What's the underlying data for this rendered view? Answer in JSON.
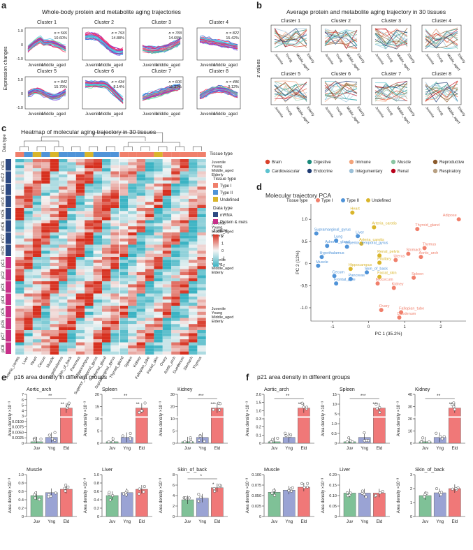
{
  "panel_labels": {
    "a": "a",
    "b": "b",
    "c": "c",
    "d": "d",
    "e": "e",
    "f": "f"
  },
  "titles": {
    "a": "Whole-body protein and metabolite aging trajectories",
    "b": "Average protein and metabolite aging trajectory in 30 tissues",
    "c": "Heatmap of molecular aging trajectory in 30 tissues",
    "d": "Molecular trajectory PCA",
    "e": "p16 area density in different groups",
    "f": "p21 area density in different groups"
  },
  "colors": {
    "typeI": "#f07f6b",
    "typeII": "#4f93d8",
    "undefined": "#d9b52b",
    "mrna": "#2e4a82",
    "protmets": "#c8308a",
    "heat_hi": "#d7301f",
    "heat_mid": "#f4f4f4",
    "heat_lo": "#3bb3c3",
    "juv": "#7fc197",
    "yng": "#9aa3d4",
    "eld": "#f07878"
  },
  "panel_a": {
    "ylabel": "Expression changes",
    "x_labels": [
      "Juvenile",
      "Middle_aged"
    ],
    "clusters": [
      {
        "name": "Cluster 1",
        "n": "n = 565",
        "pct": "10.60%"
      },
      {
        "name": "Cluster 2",
        "n": "n = 793",
        "pct": "14.88%"
      },
      {
        "name": "Cluster 3",
        "n": "n = 783",
        "pct": "14.69%"
      },
      {
        "name": "Cluster 4",
        "n": "n = 822",
        "pct": "15.42%"
      },
      {
        "name": "Cluster 5",
        "n": "n = 842",
        "pct": "15.79%"
      },
      {
        "name": "Cluster 6",
        "n": "n = 434",
        "pct": "8.14%"
      },
      {
        "name": "Cluster 7",
        "n": "n = 606",
        "pct": "11.37%"
      },
      {
        "name": "Cluster 8",
        "n": "n = 486",
        "pct": "9.12%"
      }
    ],
    "yticks": [
      "1.0",
      "0.5",
      "0",
      "-0.5",
      "-1.0"
    ]
  },
  "panel_b": {
    "ylabel": "z values",
    "x_labels": [
      "Juvenile",
      "Young",
      "Middle_aged",
      "Elderly"
    ],
    "clusters": [
      "Cluster 1",
      "Cluster 2",
      "Cluster 3",
      "Cluster 4",
      "Cluster 5",
      "Cluster 6",
      "Cluster 7",
      "Cluster 8"
    ],
    "yticks_left": [
      "0.6",
      "0.4",
      "0.2",
      "0",
      "-0.2",
      "-0.4",
      "-0.6"
    ],
    "legend": [
      {
        "label": "Brain",
        "color": "#d9412b"
      },
      {
        "label": "Digestive",
        "color": "#1a8a7a"
      },
      {
        "label": "Immune",
        "color": "#f3a37a"
      },
      {
        "label": "Muscle",
        "color": "#8bc5a3"
      },
      {
        "label": "Reproductive",
        "color": "#8b5a2b"
      },
      {
        "label": "Cardiovascular",
        "color": "#5cc3d0"
      },
      {
        "label": "Endocrine",
        "color": "#1f3b73"
      },
      {
        "label": "Integumentary",
        "color": "#9bc0d8"
      },
      {
        "label": "Renal",
        "color": "#b8001a"
      },
      {
        "label": "Respiratory",
        "color": "#b8a082"
      }
    ]
  },
  "panel_c": {
    "data_type_label": "Data type",
    "tissue_type_label": "Tissue type",
    "rows": [
      "mC1",
      "mC2",
      "mC3",
      "mC4",
      "mC5",
      "mC6",
      "mC7",
      "mC8",
      "pC1",
      "pC2",
      "pC3",
      "pC4",
      "pC5",
      "pC6",
      "pC7",
      "pC8"
    ],
    "stage_labels": [
      "Juvenile",
      "Young",
      "Middle_aged",
      "Elderly"
    ],
    "columns": [
      "Arteria_carotis",
      "Liver",
      "Heart",
      "Cecum",
      "Muscle",
      "Hypothalamus",
      "Skin_of_back",
      "Pancreas",
      "Hippocampus",
      "Superior_temporal_gyrus",
      "Adrenal_gland",
      "Supramarginal_gyrus",
      "Thyroid_gland",
      "Spleen",
      "Kidney",
      "Fallopian_tube",
      "Facial_skin",
      "Ovary",
      "Aortic_arch",
      "Duodenum",
      "Stomach",
      "Thymus"
    ],
    "legend": {
      "tissue_type_title": "Tissue type",
      "type1": "Type I",
      "type2": "Type II",
      "undefined": "Undefined",
      "data_type_title": "Data type",
      "mrna": "mRNA",
      "protmets": "Protein & mets",
      "zvalue": "z value",
      "zticks": [
        "2",
        "1",
        "0",
        "-1",
        "-2"
      ]
    }
  },
  "panel_d": {
    "legend_title": "Tissue type",
    "legend": [
      "Type I",
      "Type II",
      "Undefined"
    ],
    "xlabel": "PC 1 (35.2%)",
    "ylabel": "PC 2 (12%)",
    "xticks": [
      "-1",
      "0",
      "1",
      "2"
    ],
    "yticks": [
      "1.0",
      "0.5",
      "0",
      "-0.5",
      "-1.0"
    ],
    "xlim": [
      -1.6,
      2.7
    ],
    "ylim": [
      -1.3,
      1.35
    ]
  },
  "chart_data": [
    {
      "type": "scatter",
      "title": "Molecular trajectory PCA",
      "xlabel": "PC 1 (35.2%)",
      "ylabel": "PC 2 (12%)",
      "points": [
        {
          "label": "Adipose",
          "x": 2.5,
          "y": 1.0,
          "group": "Type I"
        },
        {
          "label": "Heart",
          "x": -0.45,
          "y": 1.15,
          "group": "Undefined"
        },
        {
          "label": "Supramarginal_gyrus",
          "x": -1.45,
          "y": 0.68,
          "group": "Type II"
        },
        {
          "label": "Arteria_carotis",
          "x": 0.15,
          "y": 0.82,
          "group": "Undefined"
        },
        {
          "label": "Liver",
          "x": -0.3,
          "y": 0.62,
          "group": "Type II"
        },
        {
          "label": "Thyroid_gland",
          "x": 1.35,
          "y": 0.78,
          "group": "Type I"
        },
        {
          "label": "Lung",
          "x": -0.9,
          "y": 0.52,
          "group": "Type II"
        },
        {
          "label": "Arteria_carotis",
          "x": -0.2,
          "y": 0.45,
          "group": "Undefined"
        },
        {
          "label": "Adrenal_gland",
          "x": -1.15,
          "y": 0.4,
          "group": "Type II"
        },
        {
          "label": "Superior_temporal_gyrus",
          "x": -0.6,
          "y": 0.38,
          "group": "Type II"
        },
        {
          "label": "Thymus",
          "x": 1.55,
          "y": 0.35,
          "group": "Type I"
        },
        {
          "label": "Stomach",
          "x": 1.1,
          "y": 0.22,
          "group": "Type I"
        },
        {
          "label": "Aortic_arch",
          "x": 1.45,
          "y": 0.15,
          "group": "Type I"
        },
        {
          "label": "Hypothalamus",
          "x": -1.3,
          "y": 0.15,
          "group": "Type II"
        },
        {
          "label": "Renal_pelvis",
          "x": 0.3,
          "y": 0.18,
          "group": "Undefined"
        },
        {
          "label": "Uterus",
          "x": 0.75,
          "y": 0.08,
          "group": "Type I"
        },
        {
          "label": "Pituitary",
          "x": 0.3,
          "y": 0.02,
          "group": "Undefined"
        },
        {
          "label": "Muscle",
          "x": -1.4,
          "y": -0.05,
          "group": "Type II"
        },
        {
          "label": "Hippocampus",
          "x": -0.5,
          "y": -0.12,
          "group": "Undefined"
        },
        {
          "label": "Skin_of_back",
          "x": -0.05,
          "y": -0.2,
          "group": "Type II"
        },
        {
          "label": "Cecum",
          "x": -0.95,
          "y": -0.28,
          "group": "Type II"
        },
        {
          "label": "Pancreas",
          "x": -0.5,
          "y": -0.35,
          "group": "Type II"
        },
        {
          "label": "Facial_skin",
          "x": 0.3,
          "y": -0.3,
          "group": "Undefined"
        },
        {
          "label": "Spleen",
          "x": 1.25,
          "y": -0.32,
          "group": "Type I"
        },
        {
          "label": "Frontal_pole",
          "x": -0.9,
          "y": -0.45,
          "group": "Type II"
        },
        {
          "label": "Ileocecum",
          "x": 0.25,
          "y": -0.45,
          "group": "Type I"
        },
        {
          "label": "Kidney",
          "x": 0.7,
          "y": -0.55,
          "group": "Type I"
        },
        {
          "label": "Ovary",
          "x": 0.35,
          "y": -1.05,
          "group": "Type I"
        },
        {
          "label": "Fallopian_tube",
          "x": 0.9,
          "y": -1.1,
          "group": "Type I"
        },
        {
          "label": "Duodenum",
          "x": 0.85,
          "y": -1.22,
          "group": "Type I"
        }
      ]
    },
    {
      "type": "bar",
      "title": "p16 Aortic_arch",
      "categories": [
        "Juv",
        "Yng",
        "Eld"
      ],
      "values": [
        0.0003,
        0.0015,
        5.0
      ],
      "ylabel": "Area density ×10⁻³",
      "yticks": [
        "7",
        "6",
        "5",
        "4",
        "3",
        "0.0100",
        "0.0075",
        "0.0050",
        "0.0025",
        "0"
      ],
      "sig": [
        "**",
        "**"
      ]
    },
    {
      "type": "bar",
      "title": "p16 Spleen",
      "categories": [
        "Juv",
        "Yng",
        "Eld"
      ],
      "values": [
        0.5,
        2.5,
        20
      ],
      "ylabel": "",
      "yticks": [
        "20",
        "15",
        "10",
        "5",
        "0"
      ],
      "sig": [
        "**",
        "**"
      ]
    },
    {
      "type": "bar",
      "title": "p16 Kidney",
      "categories": [
        "Juv",
        "Yng",
        "Eld"
      ],
      "values": [
        0.5,
        2.5,
        26
      ],
      "ylabel": "",
      "yticks": [
        "30",
        "20",
        "10",
        "5",
        "0"
      ],
      "sig": [
        "***",
        "***"
      ]
    },
    {
      "type": "bar",
      "title": "p16 Muscle",
      "categories": [
        "Juv",
        "Yng",
        "Eld"
      ],
      "values": [
        0.5,
        0.57,
        0.65
      ],
      "ylabel": "Area density ×10⁻³",
      "ylim": [
        0,
        1.0
      ],
      "yticks": [
        "1.0",
        "0.8",
        "0.6",
        "0.4",
        "0.2",
        "0"
      ]
    },
    {
      "type": "bar",
      "title": "p16 Liver",
      "categories": [
        "Juv",
        "Yng",
        "Eld"
      ],
      "values": [
        0.5,
        0.57,
        0.65
      ],
      "ylim": [
        0,
        1.0
      ],
      "yticks": [
        "1.0",
        "0.8",
        "0.6",
        "0.4",
        "0.2",
        "0"
      ]
    },
    {
      "type": "bar",
      "title": "p16 Skin_of_back",
      "categories": [
        "Juv",
        "Yng",
        "Eld"
      ],
      "values": [
        3.2,
        3.5,
        5.5
      ],
      "ylim": [
        0,
        8
      ],
      "yticks": [
        "8",
        "6",
        "4",
        "2",
        "0"
      ],
      "sig": [
        "*",
        "*"
      ]
    },
    {
      "type": "bar",
      "title": "p21 Aortic_arch",
      "categories": [
        "Juv",
        "Yng",
        "Eld"
      ],
      "values": [
        0.005,
        0.02,
        1.7
      ],
      "ylabel": "Area density ×10⁻³",
      "yticks": [
        "2.0",
        "1.5",
        "1.0",
        "0.3",
        "0.2",
        "0.1",
        "0"
      ],
      "sig": [
        "**",
        "**"
      ]
    },
    {
      "type": "bar",
      "title": "p21 Spleen",
      "categories": [
        "Juv",
        "Yng",
        "Eld"
      ],
      "values": [
        0.5,
        1.5,
        16
      ],
      "yticks": [
        "15",
        "10",
        "5",
        "1.0",
        "0.5",
        "0"
      ],
      "sig": [
        "***",
        "***"
      ]
    },
    {
      "type": "bar",
      "title": "p21 Kidney",
      "categories": [
        "Juv",
        "Yng",
        "Eld"
      ],
      "values": [
        0.5,
        2.5,
        31
      ],
      "yticks": [
        "40",
        "30",
        "20",
        "10",
        "0"
      ],
      "sig": [
        "**",
        "**"
      ]
    },
    {
      "type": "bar",
      "title": "p21 Muscle",
      "categories": [
        "Juv",
        "Yng",
        "Eld"
      ],
      "values": [
        0.058,
        0.063,
        0.07
      ],
      "ylabel": "Area density ×10⁻³",
      "ylim": [
        0,
        0.1
      ],
      "yticks": [
        "0.100",
        "0.075",
        "0.050",
        "0.025",
        "0"
      ]
    },
    {
      "type": "bar",
      "title": "p21 Liver",
      "categories": [
        "Juv",
        "Yng",
        "Eld"
      ],
      "values": [
        0.14,
        0.14,
        0.14
      ],
      "ylim": [
        0,
        0.25
      ],
      "yticks": [
        "0.20",
        "0.15",
        "0.10",
        "0.05",
        "0"
      ]
    },
    {
      "type": "bar",
      "title": "p21 Skin_of_back",
      "categories": [
        "Juv",
        "Yng",
        "Eld"
      ],
      "values": [
        1.5,
        1.7,
        2.0
      ],
      "ylim": [
        0,
        3
      ],
      "yticks": [
        "3",
        "2",
        "1",
        "0"
      ]
    }
  ],
  "bar_panels": {
    "e": [
      {
        "title": "Aortic_arch",
        "ylabel": "Area density ×10⁻³"
      },
      {
        "title": "Spleen",
        "ylabel": "Area density ×10⁻³"
      },
      {
        "title": "Kidney",
        "ylabel": "Area density ×10⁻³"
      },
      {
        "title": "Muscle",
        "ylabel": "Area density ×10⁻³"
      },
      {
        "title": "Liver",
        "ylabel": "Area density ×10⁻³"
      },
      {
        "title": "Skin_of_back",
        "ylabel": "Area density ×10⁻³"
      }
    ],
    "f": [
      {
        "title": "Aortic_arch",
        "ylabel": "Area density ×10⁻³"
      },
      {
        "title": "Spleen",
        "ylabel": "Area density ×10⁻³"
      },
      {
        "title": "Kidney",
        "ylabel": "Area density ×10⁻³"
      },
      {
        "title": "Muscle",
        "ylabel": "Area density ×10⁻³"
      },
      {
        "title": "Liver",
        "ylabel": "Area density ×10⁻³"
      },
      {
        "title": "Skin_of_back",
        "ylabel": "Area density ×10⁻³"
      }
    ]
  }
}
